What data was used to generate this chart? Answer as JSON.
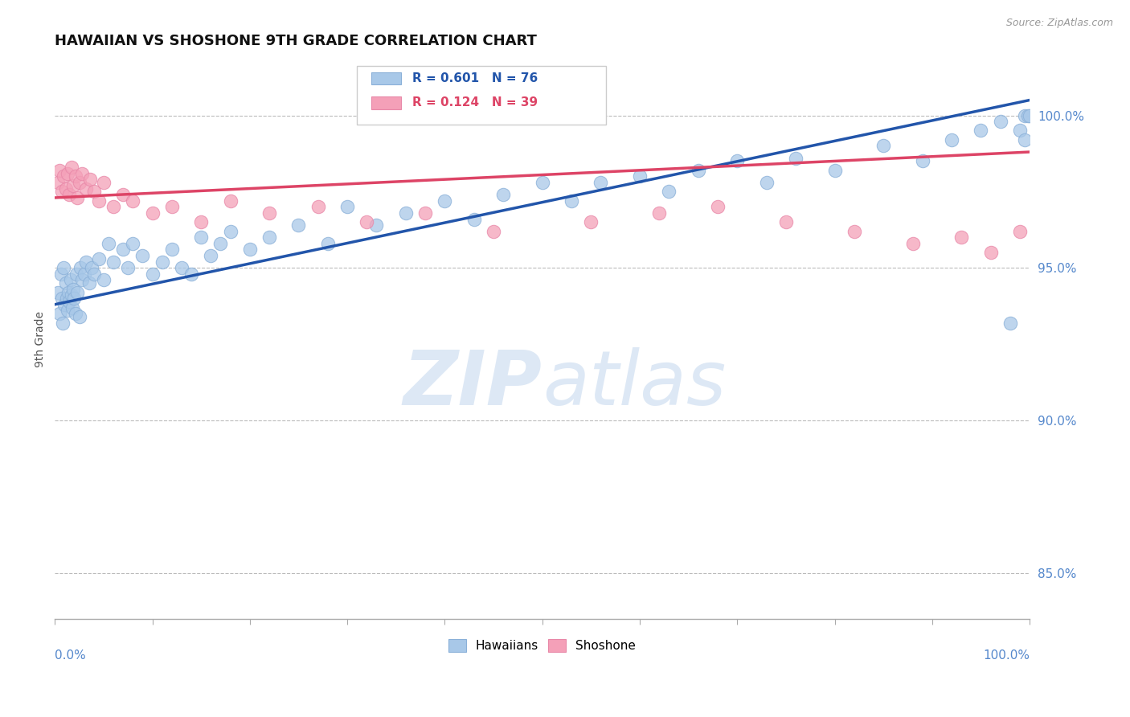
{
  "title": "HAWAIIAN VS SHOSHONE 9TH GRADE CORRELATION CHART",
  "source_text": "Source: ZipAtlas.com",
  "ylabel": "9th Grade",
  "yticks": [
    85.0,
    90.0,
    95.0,
    100.0
  ],
  "ytick_labels": [
    "85.0%",
    "90.0%",
    "95.0%",
    "100.0%"
  ],
  "xlim": [
    0.0,
    100.0
  ],
  "ylim": [
    83.5,
    101.8
  ],
  "blue_R": 0.601,
  "blue_N": 76,
  "pink_R": 0.124,
  "pink_N": 39,
  "blue_color": "#a8c8e8",
  "pink_color": "#f4a0b8",
  "blue_edge_color": "#8ab0d8",
  "pink_edge_color": "#e888a8",
  "blue_line_color": "#2255aa",
  "pink_line_color": "#dd4466",
  "legend_label_blue": "Hawaiians",
  "legend_label_pink": "Shoshone",
  "background_color": "#ffffff",
  "grid_color": "#bbbbbb",
  "title_color": "#111111",
  "axis_label_color": "#5588cc",
  "watermark_color": "#dde8f5",
  "blue_line_x0": 0.0,
  "blue_line_y0": 93.8,
  "blue_line_x1": 100.0,
  "blue_line_y1": 100.5,
  "pink_line_x0": 0.0,
  "pink_line_y0": 97.3,
  "pink_line_x1": 100.0,
  "pink_line_y1": 98.8,
  "hawaiian_x": [
    0.3,
    0.5,
    0.6,
    0.7,
    0.8,
    0.9,
    1.0,
    1.1,
    1.2,
    1.3,
    1.4,
    1.5,
    1.6,
    1.7,
    1.8,
    1.9,
    2.0,
    2.1,
    2.2,
    2.3,
    2.5,
    2.6,
    2.8,
    3.0,
    3.2,
    3.5,
    3.8,
    4.0,
    4.5,
    5.0,
    5.5,
    6.0,
    7.0,
    7.5,
    8.0,
    9.0,
    10.0,
    11.0,
    12.0,
    13.0,
    14.0,
    15.0,
    16.0,
    17.0,
    18.0,
    20.0,
    22.0,
    25.0,
    28.0,
    30.0,
    33.0,
    36.0,
    40.0,
    43.0,
    46.0,
    50.0,
    53.0,
    56.0,
    60.0,
    63.0,
    66.0,
    70.0,
    73.0,
    76.0,
    80.0,
    85.0,
    89.0,
    92.0,
    95.0,
    97.0,
    99.0,
    99.5,
    99.8,
    100.0,
    99.5,
    98.0
  ],
  "hawaiian_y": [
    94.2,
    93.5,
    94.8,
    94.0,
    93.2,
    95.0,
    93.8,
    94.5,
    94.0,
    93.6,
    94.2,
    93.9,
    94.6,
    94.1,
    93.7,
    94.3,
    94.0,
    93.5,
    94.8,
    94.2,
    93.4,
    95.0,
    94.6,
    94.8,
    95.2,
    94.5,
    95.0,
    94.8,
    95.3,
    94.6,
    95.8,
    95.2,
    95.6,
    95.0,
    95.8,
    95.4,
    94.8,
    95.2,
    95.6,
    95.0,
    94.8,
    96.0,
    95.4,
    95.8,
    96.2,
    95.6,
    96.0,
    96.4,
    95.8,
    97.0,
    96.4,
    96.8,
    97.2,
    96.6,
    97.4,
    97.8,
    97.2,
    97.8,
    98.0,
    97.5,
    98.2,
    98.5,
    97.8,
    98.6,
    98.2,
    99.0,
    98.5,
    99.2,
    99.5,
    99.8,
    99.5,
    100.0,
    100.0,
    100.0,
    99.2,
    93.2
  ],
  "shoshone_x": [
    0.3,
    0.5,
    0.7,
    0.9,
    1.1,
    1.3,
    1.5,
    1.7,
    1.9,
    2.1,
    2.3,
    2.5,
    2.8,
    3.2,
    3.6,
    4.0,
    4.5,
    5.0,
    6.0,
    7.0,
    8.0,
    10.0,
    12.0,
    15.0,
    18.0,
    22.0,
    27.0,
    32.0,
    38.0,
    45.0,
    55.0,
    62.0,
    68.0,
    75.0,
    82.0,
    88.0,
    93.0,
    96.0,
    99.0
  ],
  "shoshone_y": [
    97.8,
    98.2,
    97.5,
    98.0,
    97.6,
    98.1,
    97.4,
    98.3,
    97.7,
    98.0,
    97.3,
    97.8,
    98.1,
    97.6,
    97.9,
    97.5,
    97.2,
    97.8,
    97.0,
    97.4,
    97.2,
    96.8,
    97.0,
    96.5,
    97.2,
    96.8,
    97.0,
    96.5,
    96.8,
    96.2,
    96.5,
    96.8,
    97.0,
    96.5,
    96.2,
    95.8,
    96.0,
    95.5,
    96.2
  ]
}
